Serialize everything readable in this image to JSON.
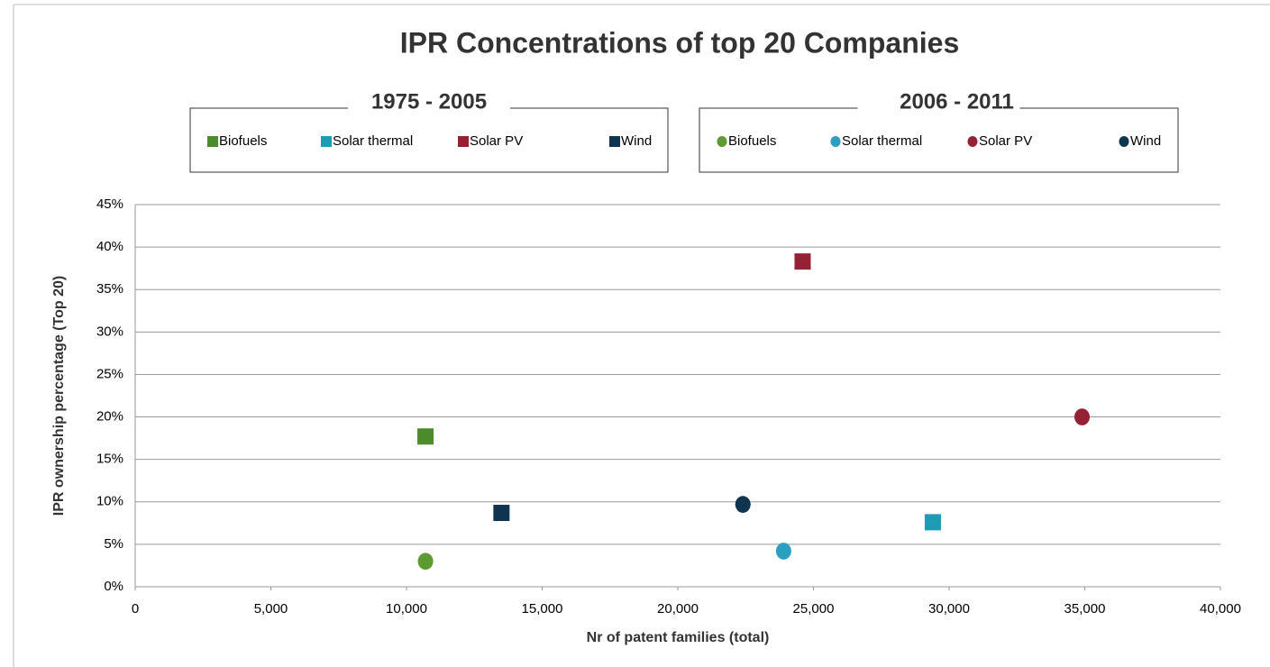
{
  "chart_data": {
    "type": "scatter",
    "title": "IPR Concentrations of top 20 Companies",
    "x_label": "Nr of patent families (total)",
    "y_label": "IPR ownership percentage (Top 20)",
    "xlim": [
      0,
      40000
    ],
    "xticks": [
      0,
      {
        "value": 5000,
        "label": "5,000"
      },
      {
        "value": 10000,
        "label": "10,000"
      },
      {
        "value": 15000,
        "label": "15,000"
      },
      {
        "value": 20000,
        "label": "20,000"
      },
      {
        "value": 25000,
        "label": "25,000"
      },
      {
        "value": 30000,
        "label": "30,000"
      },
      {
        "value": 35000,
        "label": "35,000"
      },
      {
        "value": 40000,
        "label": "40,000"
      }
    ],
    "ylim": [
      0,
      45
    ],
    "yticks": [
      {
        "value": 0,
        "label": "0%"
      },
      {
        "value": 5,
        "label": "5%"
      },
      {
        "value": 10,
        "label": "10%"
      },
      {
        "value": 15,
        "label": "15%"
      },
      {
        "value": 20,
        "label": "20%"
      },
      {
        "value": 25,
        "label": "25%"
      },
      {
        "value": 30,
        "label": "30%"
      },
      {
        "value": 35,
        "label": "35%"
      },
      {
        "value": 40,
        "label": "40%"
      },
      {
        "value": 45,
        "label": "45%"
      }
    ],
    "grid": true,
    "series_groups": [
      {
        "title": "1975 - 2005",
        "marker": "square",
        "series": [
          {
            "name": "Biofuels",
            "color": "#4a8b2c",
            "x": [
              10700
            ],
            "values": [
              17.7
            ]
          },
          {
            "name": "Solar thermal",
            "color": "#1e9bb5",
            "x": [
              29400
            ],
            "values": [
              7.6
            ]
          },
          {
            "name": "Solar PV",
            "color": "#952234",
            "x": [
              24600
            ],
            "values": [
              38.3
            ]
          },
          {
            "name": "Wind",
            "color": "#0f3450",
            "x": [
              13500
            ],
            "values": [
              8.7
            ]
          }
        ]
      },
      {
        "title": "2006 - 2011",
        "marker": "circle",
        "series": [
          {
            "name": "Biofuels",
            "color": "#5b9b32",
            "x": [
              10700
            ],
            "values": [
              3.0
            ]
          },
          {
            "name": "Solar thermal",
            "color": "#2a9fc0",
            "x": [
              23900
            ],
            "values": [
              4.2
            ]
          },
          {
            "name": "Solar PV",
            "color": "#952234",
            "x": [
              34900
            ],
            "values": [
              20.0
            ]
          },
          {
            "name": "Wind",
            "color": "#0f3450",
            "x": [
              22400
            ],
            "values": [
              9.7
            ]
          }
        ]
      }
    ]
  }
}
